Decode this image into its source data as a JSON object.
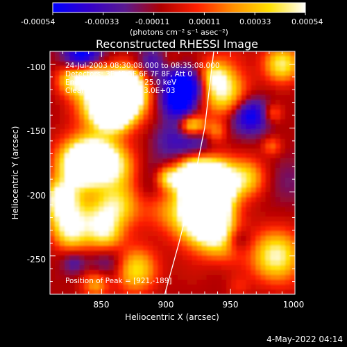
{
  "colorbar": {
    "ticks": [
      "-0.00054",
      "-0.00033",
      "-0.00011",
      "0.00011",
      "0.00033",
      "0.00054"
    ],
    "units": "(photons cm⁻² s⁻¹ asec⁻²)",
    "colors": [
      "#0000ff",
      "#3300cc",
      "#5a1a90",
      "#b00000",
      "#ff2000",
      "#ff9000",
      "#ffe000",
      "#ffffff"
    ]
  },
  "chart_data": {
    "type": "heatmap",
    "title": "Reconstructed RHESSI Image",
    "xlabel": "Heliocentric X (arcsec)",
    "ylabel": "Heliocentric Y (arcsec)",
    "xlim": [
      810,
      1000
    ],
    "ylim": [
      -280,
      -90
    ],
    "xticks": [
      850,
      900,
      950,
      1000
    ],
    "yticks": [
      -100,
      -150,
      -200,
      -250
    ],
    "zlim": [
      -0.00054,
      0.00054
    ],
    "annotations": [
      "24-Jul-2003 08:30:08.000 to 08:35:08.000",
      "Detectors: 3F 4F 5F 6F 7F 8F, Att 0",
      "Energy Range: 12.0 - 25.0 keV",
      "Clean    Total counts: 3.0E+03"
    ],
    "peak_label": "Position of Peak = [921,-189]",
    "peak": [
      921,
      -189
    ],
    "limb": [
      [
        899,
        -280
      ],
      [
        910,
        -240
      ],
      [
        920,
        -200
      ],
      [
        930,
        -150
      ],
      [
        937,
        -90
      ]
    ]
  },
  "footer": {
    "date": "4-May-2022 04:14"
  }
}
